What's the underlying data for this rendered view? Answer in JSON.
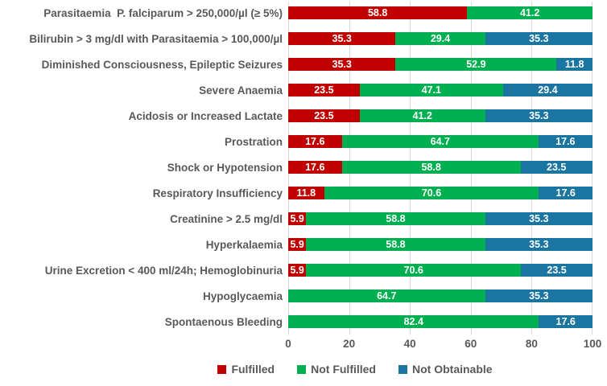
{
  "colors": {
    "fulfilled": "#c00000",
    "not_fulfilled": "#00b050",
    "not_obtainable": "#1b75a1",
    "gridline": "#d9d9d9",
    "label_text": "#595959",
    "bar_value_text": "#ffffff"
  },
  "chart_data": {
    "type": "bar",
    "orientation": "horizontal",
    "stacked": true,
    "grid": true,
    "legend_position": "bottom",
    "xlim": [
      0,
      100
    ],
    "x_ticks": [
      0,
      20,
      40,
      60,
      80,
      100
    ],
    "categories": [
      "Parasitaemia  P. falciparum > 250,000/µl (≥ 5%)",
      "Bilirubin > 3 mg/dl with Parasitaemia > 100,000/µl",
      "Diminished Consciousness, Epileptic Seizures",
      "Severe Anaemia",
      "Acidosis or Increased Lactate",
      "Prostration",
      "Shock or Hypotension",
      "Respiratory Insufficiency",
      "Creatinine > 2.5 mg/dl",
      "Hyperkalaemia",
      "Urine Excretion < 400 ml/24h; Hemoglobinuria",
      "Hypoglycaemia",
      "Spontaenous Bleeding"
    ],
    "series": [
      {
        "name": "Fulfilled",
        "color": "#c00000",
        "values": [
          58.8,
          35.3,
          35.3,
          23.5,
          23.5,
          17.6,
          17.6,
          11.8,
          5.9,
          5.9,
          5.9,
          0,
          0
        ]
      },
      {
        "name": "Not Fulfilled",
        "color": "#00b050",
        "values": [
          41.2,
          29.4,
          52.9,
          47.1,
          41.2,
          64.7,
          58.8,
          70.6,
          58.8,
          58.8,
          70.6,
          64.7,
          82.4
        ]
      },
      {
        "name": "Not Obtainable",
        "color": "#1b75a1",
        "values": [
          0,
          35.3,
          11.8,
          29.4,
          35.3,
          17.6,
          23.5,
          17.6,
          35.3,
          35.3,
          23.5,
          35.3,
          17.6
        ]
      }
    ]
  }
}
